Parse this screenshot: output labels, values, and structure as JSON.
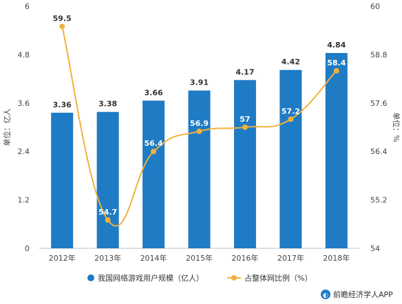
{
  "chart_data": {
    "type": "bar",
    "categories": [
      "2012年",
      "2013年",
      "2014年",
      "2015年",
      "2016年",
      "2017年",
      "2018年"
    ],
    "series": [
      {
        "name": "我国网络游戏用户规模（亿人）",
        "type": "bar",
        "axis": "left",
        "color": "#1f7bc4",
        "values": [
          3.36,
          3.38,
          3.66,
          3.91,
          4.17,
          4.42,
          4.84
        ],
        "labels": [
          "3.36",
          "3.38",
          "3.66",
          "3.91",
          "4.17",
          "4.42",
          "4.84"
        ]
      },
      {
        "name": "占整体网比例（%）",
        "type": "line",
        "axis": "right",
        "color": "#f0b23c",
        "values": [
          59.5,
          54.7,
          56.4,
          56.9,
          57.0,
          57.2,
          58.4
        ],
        "labels": [
          "59.5",
          "54.7",
          "56.4",
          "56.9",
          "57",
          "57.2",
          "58.4"
        ]
      }
    ],
    "y_left": {
      "label": "单位：亿人",
      "ylim": [
        0,
        6
      ],
      "ticks": [
        "0",
        "1.2",
        "2.4",
        "3.6",
        "4.8",
        "6"
      ]
    },
    "y_right": {
      "label": "单位：%",
      "ylim": [
        54,
        60
      ],
      "ticks": [
        "54",
        "55.2",
        "56.4",
        "57.6",
        "58.8",
        "60"
      ]
    },
    "grid": false,
    "legend_position": "bottom"
  },
  "brand": {
    "text": "前瞻经济学人APP"
  }
}
